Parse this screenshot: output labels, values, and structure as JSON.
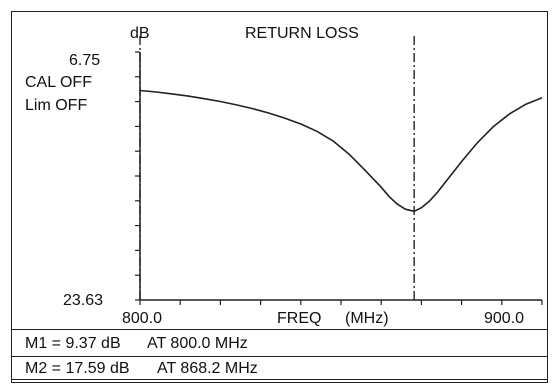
{
  "chart_data": {
    "type": "line",
    "title": "RETURN LOSS",
    "ylabel": "dB",
    "xlabel": "FREQ",
    "xunit": "(MHz)",
    "y_top_label": "6.75",
    "y_bottom_label": "23.63",
    "ylim": [
      6.75,
      23.63
    ],
    "y_reversed": true,
    "x_start_label": "800.0",
    "x_end_label": "900.0",
    "xlim": [
      800.0,
      900.0
    ],
    "status": [
      "CAL OFF",
      "Lim OFF"
    ],
    "grid": false,
    "series": [
      {
        "color": "#222222",
        "x": [
          800.0,
          804,
          808,
          812,
          816,
          820,
          824,
          828,
          832,
          836,
          840,
          844,
          848,
          852,
          856,
          860,
          862,
          864,
          866,
          868.2,
          870,
          872,
          874,
          876,
          878,
          880,
          884,
          888,
          892,
          896,
          900
        ],
        "y": [
          9.37,
          9.47,
          9.6,
          9.75,
          9.93,
          10.12,
          10.35,
          10.6,
          10.9,
          11.25,
          11.65,
          12.15,
          12.8,
          13.7,
          14.8,
          15.95,
          16.6,
          17.1,
          17.45,
          17.59,
          17.35,
          16.9,
          16.3,
          15.6,
          14.9,
          14.2,
          12.9,
          11.8,
          10.95,
          10.3,
          9.87
        ]
      }
    ],
    "markers": [
      {
        "name": "M1",
        "x": 800.0,
        "y": 9.37
      },
      {
        "name": "M2",
        "x": 868.2,
        "y": 17.59
      }
    ]
  },
  "readout": [
    {
      "value": "M1 = 9.37 dB",
      "at": "AT 800.0 MHz"
    },
    {
      "value": "M2 = 17.59 dB",
      "at": "AT 868.2 MHz"
    }
  ]
}
